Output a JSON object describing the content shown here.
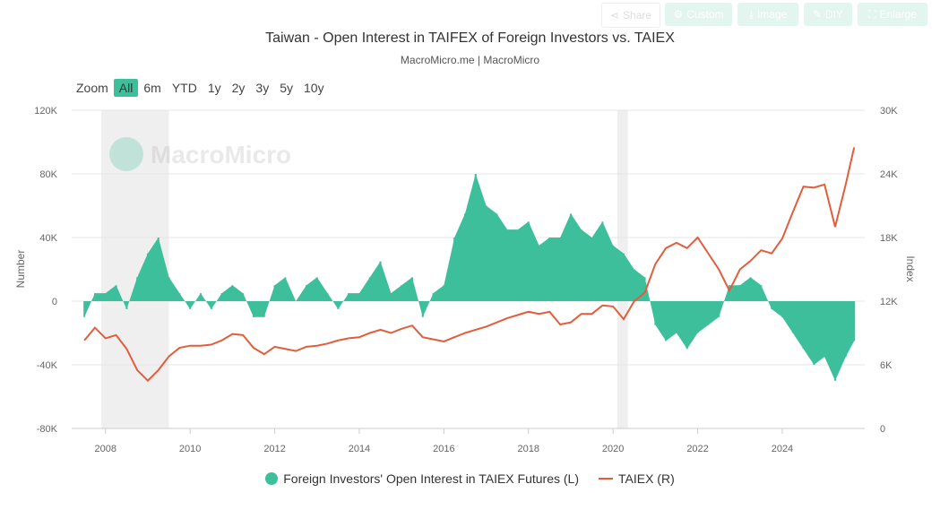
{
  "toolbar": {
    "share": "Share",
    "custom": "Custom",
    "image": "Image",
    "diy": "DIY",
    "enlarge": "Enlarge"
  },
  "title": "Taiwan - Open Interest in TAIFEX of Foreign Investors vs. TAIEX",
  "subtitle": "MacroMicro.me | MacroMicro",
  "zoom": {
    "label": "Zoom",
    "options": [
      "All",
      "6m",
      "YTD",
      "1y",
      "2y",
      "3y",
      "5y",
      "10y"
    ],
    "selected": "All"
  },
  "watermark": "MacroMicro",
  "colors": {
    "oi": "#3dbf9c",
    "taiex": "#e25d3c",
    "band": "#efefef"
  },
  "chart_data": {
    "type": "area+line",
    "title": "Taiwan - Open Interest in TAIFEX of Foreign Investors vs. TAIEX",
    "ylabel_left": "Number",
    "ylabel_right": "Index",
    "ylim_left": [
      -80000,
      120000
    ],
    "ylim_right": [
      0,
      30000
    ],
    "yticks_left": [
      "-80K",
      "-40K",
      "0",
      "40K",
      "80K",
      "120K"
    ],
    "yticks_right": [
      "0",
      "6K",
      "12K",
      "18K",
      "24K",
      "30K"
    ],
    "xlim": [
      2007.2,
      2025.95
    ],
    "xticks": [
      "2008",
      "2010",
      "2012",
      "2014",
      "2016",
      "2018",
      "2020",
      "2022",
      "2024"
    ],
    "shaded_periods": [
      [
        2007.9,
        2009.5
      ],
      [
        2020.1,
        2020.35
      ]
    ],
    "x": [
      2007.5,
      2007.75,
      2008,
      2008.25,
      2008.5,
      2008.75,
      2009,
      2009.25,
      2009.5,
      2009.75,
      2010,
      2010.25,
      2010.5,
      2010.75,
      2011,
      2011.25,
      2011.5,
      2011.75,
      2012,
      2012.25,
      2012.5,
      2012.75,
      2013,
      2013.25,
      2013.5,
      2013.75,
      2014,
      2014.25,
      2014.5,
      2014.75,
      2015,
      2015.25,
      2015.5,
      2015.75,
      2016,
      2016.25,
      2016.5,
      2016.75,
      2017,
      2017.25,
      2017.5,
      2017.75,
      2018,
      2018.25,
      2018.5,
      2018.75,
      2019,
      2019.25,
      2019.5,
      2019.75,
      2020,
      2020.25,
      2020.5,
      2020.75,
      2021,
      2021.25,
      2021.5,
      2021.75,
      2022,
      2022.25,
      2022.5,
      2022.75,
      2023,
      2023.25,
      2023.5,
      2023.75,
      2024,
      2024.25,
      2024.5,
      2024.75,
      2025,
      2025.25,
      2025.5,
      2025.7
    ],
    "series": [
      {
        "name": "Foreign Investors' Open Interest in TAIEX Futures (L)",
        "axis": "left",
        "values": [
          -10000,
          5000,
          5000,
          10000,
          -5000,
          15000,
          30000,
          40000,
          15000,
          5000,
          -5000,
          5000,
          -5000,
          5000,
          10000,
          5000,
          -10000,
          -10000,
          10000,
          15000,
          0,
          10000,
          15000,
          5000,
          -5000,
          5000,
          5000,
          15000,
          25000,
          5000,
          10000,
          15000,
          -10000,
          5000,
          10000,
          40000,
          55000,
          80000,
          60000,
          55000,
          45000,
          45000,
          50000,
          35000,
          40000,
          40000,
          55000,
          45000,
          40000,
          50000,
          35000,
          30000,
          20000,
          15000,
          -15000,
          -25000,
          -20000,
          -30000,
          -20000,
          -15000,
          -10000,
          10000,
          10000,
          15000,
          10000,
          -5000,
          -10000,
          -20000,
          -30000,
          -40000,
          -35000,
          -50000,
          -35000,
          -25000
        ]
      },
      {
        "name": "TAIEX (R)",
        "axis": "right",
        "values": [
          8300,
          9500,
          8500,
          8800,
          7500,
          5500,
          4500,
          5500,
          6800,
          7600,
          7800,
          7800,
          7900,
          8300,
          8900,
          8800,
          7600,
          7000,
          7700,
          7500,
          7300,
          7700,
          7800,
          8000,
          8300,
          8500,
          8600,
          9000,
          9300,
          9000,
          9400,
          9700,
          8600,
          8400,
          8200,
          8600,
          9000,
          9300,
          9600,
          10000,
          10400,
          10700,
          11000,
          10800,
          11000,
          9800,
          10000,
          10800,
          10800,
          11600,
          11500,
          10300,
          12000,
          12800,
          15500,
          17000,
          17500,
          17000,
          18000,
          16500,
          15000,
          13000,
          15000,
          15800,
          16800,
          16500,
          17900,
          20400,
          22800,
          22700,
          23000,
          19000,
          23000,
          26500
        ]
      }
    ],
    "legend": "bottom"
  }
}
